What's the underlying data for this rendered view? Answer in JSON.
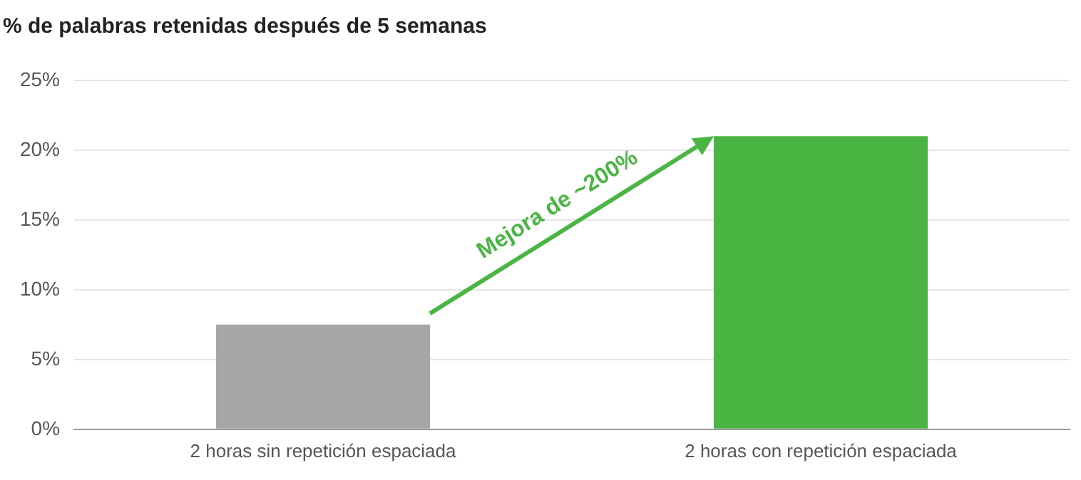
{
  "chart_data": {
    "type": "bar",
    "title": "% de palabras retenidas después de 5 semanas",
    "categories": [
      "2 horas sin repetición espaciada",
      "2 horas con repetición espaciada"
    ],
    "values": [
      7.5,
      21
    ],
    "colors": [
      "#a6a6a6",
      "#4bb543"
    ],
    "ylim": [
      0,
      25
    ],
    "yticks": [
      {
        "value": 0,
        "label": "0%"
      },
      {
        "value": 5,
        "label": "5%"
      },
      {
        "value": 10,
        "label": "10%"
      },
      {
        "value": 15,
        "label": "15%"
      },
      {
        "value": 20,
        "label": "20%"
      },
      {
        "value": 25,
        "label": "25%"
      }
    ],
    "grid": "y",
    "legend": false,
    "annotations": [
      "Mejora de ~200%"
    ]
  }
}
